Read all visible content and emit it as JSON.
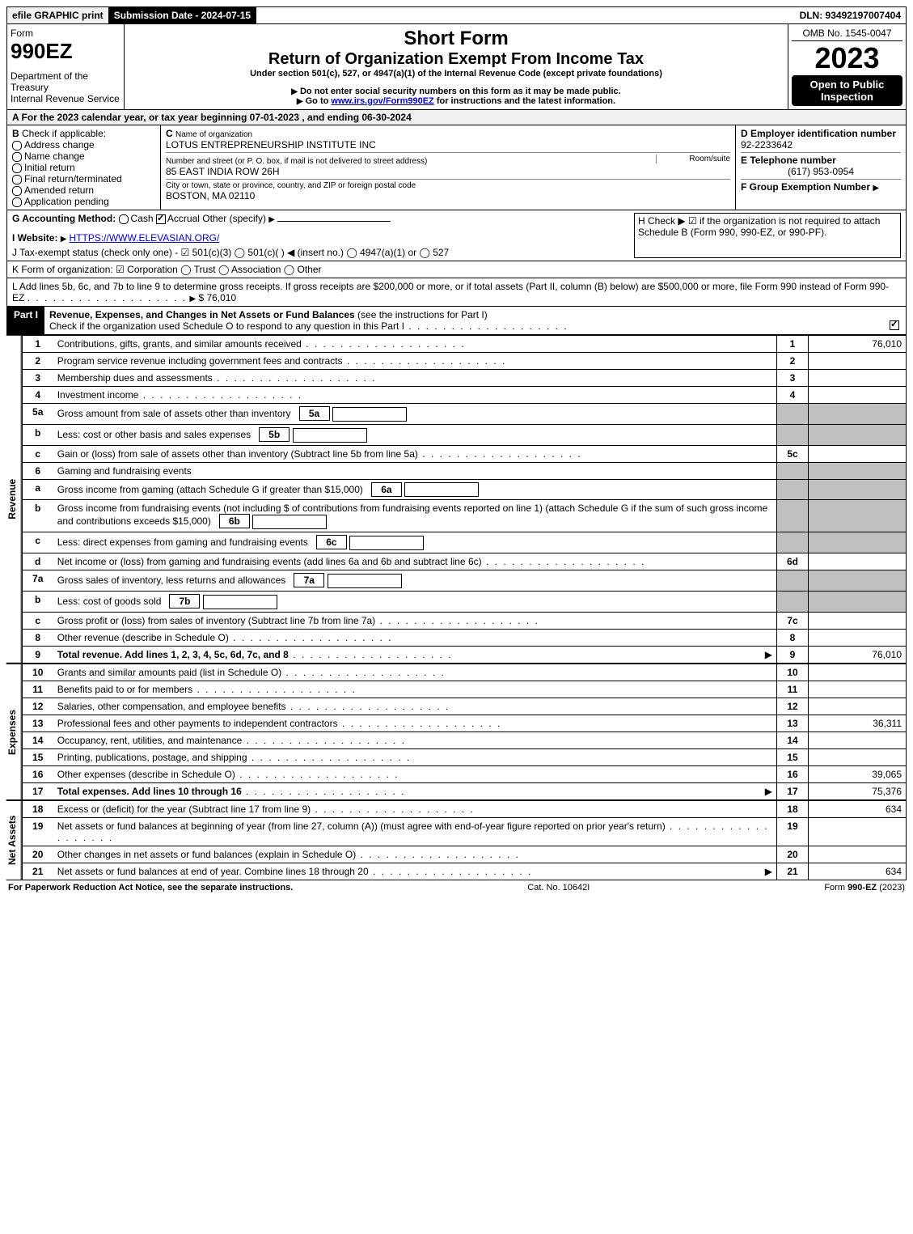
{
  "top": {
    "efile": "efile GRAPHIC print",
    "submission": "Submission Date - 2024-07-15",
    "dln": "DLN: 93492197007404"
  },
  "header": {
    "form_label": "Form",
    "form_no": "990EZ",
    "dept": "Department of the Treasury",
    "irs": "Internal Revenue Service",
    "short": "Short Form",
    "title2": "Return of Organization Exempt From Income Tax",
    "sub1": "Under section 501(c), 527, or 4947(a)(1) of the Internal Revenue Code (except private foundations)",
    "sub2": "Do not enter social security numbers on this form as it may be made public.",
    "sub3_pre": "Go to ",
    "sub3_link": "www.irs.gov/Form990EZ",
    "sub3_post": " for instructions and the latest information.",
    "omb": "OMB No. 1545-0047",
    "year": "2023",
    "open": "Open to Public Inspection"
  },
  "row_a": "A  For the 2023 calendar year, or tax year beginning 07-01-2023 , and ending 06-30-2024",
  "box_b": {
    "head": "B",
    "label": "Check if applicable:",
    "items": [
      "Address change",
      "Name change",
      "Initial return",
      "Final return/terminated",
      "Amended return",
      "Application pending"
    ]
  },
  "box_c": {
    "c_label": "C",
    "name_label": "Name of organization",
    "name": "LOTUS ENTREPRENEURSHIP INSTITUTE INC",
    "street_label": "Number and street (or P. O. box, if mail is not delivered to street address)",
    "room_label": "Room/suite",
    "street": "85 EAST INDIA ROW 26H",
    "city_label": "City or town, state or province, country, and ZIP or foreign postal code",
    "city": "BOSTON, MA  02110"
  },
  "box_d": {
    "d_label": "D Employer identification number",
    "ein": "92-2233642",
    "e_label": "E Telephone number",
    "phone": "(617) 953-0954",
    "f_label": "F Group Exemption Number"
  },
  "row_g": {
    "label": "G Accounting Method:",
    "cash": "Cash",
    "accrual": "Accrual",
    "other": "Other (specify)"
  },
  "row_h": "H   Check ▶  ☑  if the organization is not required to attach Schedule B (Form 990, 990-EZ, or 990-PF).",
  "row_i": {
    "label": "I Website: ",
    "url": "HTTPS://WWW.ELEVASIAN.ORG/"
  },
  "row_j": "J Tax-exempt status (check only one) -  ☑ 501(c)(3)  ◯ 501(c)(  ) ◀ (insert no.)  ◯ 4947(a)(1) or  ◯ 527",
  "row_k": "K Form of organization:   ☑ Corporation   ◯ Trust   ◯ Association   ◯ Other",
  "row_l": {
    "text": "L Add lines 5b, 6c, and 7b to line 9 to determine gross receipts. If gross receipts are $200,000 or more, or if total assets (Part II, column (B) below) are $500,000 or more, file Form 990 instead of Form 990-EZ",
    "amount": "$ 76,010"
  },
  "part1": {
    "label": "Part I",
    "title": "Revenue, Expenses, and Changes in Net Assets or Fund Balances",
    "sub": " (see the instructions for Part I)",
    "check_note": "Check if the organization used Schedule O to respond to any question in this Part I"
  },
  "revenue_lines": [
    {
      "n": "1",
      "d": "Contributions, gifts, grants, and similar amounts received",
      "r": "1",
      "a": "76,010"
    },
    {
      "n": "2",
      "d": "Program service revenue including government fees and contracts",
      "r": "2",
      "a": ""
    },
    {
      "n": "3",
      "d": "Membership dues and assessments",
      "r": "3",
      "a": ""
    },
    {
      "n": "4",
      "d": "Investment income",
      "r": "4",
      "a": ""
    },
    {
      "n": "5a",
      "d": "Gross amount from sale of assets other than inventory",
      "inner": "5a",
      "gray": true
    },
    {
      "n": "b",
      "d": "Less: cost or other basis and sales expenses",
      "inner": "5b",
      "gray": true
    },
    {
      "n": "c",
      "d": "Gain or (loss) from sale of assets other than inventory (Subtract line 5b from line 5a)",
      "r": "5c",
      "a": ""
    },
    {
      "n": "6",
      "d": "Gaming and fundraising events",
      "noR": true,
      "gray": true
    },
    {
      "n": "a",
      "d": "Gross income from gaming (attach Schedule G if greater than $15,000)",
      "inner": "6a",
      "gray": true
    },
    {
      "n": "b",
      "d": "Gross income from fundraising events (not including $                      of contributions from fundraising events reported on line 1) (attach Schedule G if the sum of such gross income and contributions exceeds $15,000)",
      "inner": "6b",
      "gray": true
    },
    {
      "n": "c",
      "d": "Less: direct expenses from gaming and fundraising events",
      "inner": "6c",
      "gray": true
    },
    {
      "n": "d",
      "d": "Net income or (loss) from gaming and fundraising events (add lines 6a and 6b and subtract line 6c)",
      "r": "6d",
      "a": ""
    },
    {
      "n": "7a",
      "d": "Gross sales of inventory, less returns and allowances",
      "inner": "7a",
      "gray": true
    },
    {
      "n": "b",
      "d": "Less: cost of goods sold",
      "inner": "7b",
      "gray": true
    },
    {
      "n": "c",
      "d": "Gross profit or (loss) from sales of inventory (Subtract line 7b from line 7a)",
      "r": "7c",
      "a": ""
    },
    {
      "n": "8",
      "d": "Other revenue (describe in Schedule O)",
      "r": "8",
      "a": ""
    },
    {
      "n": "9",
      "d": "Total revenue. Add lines 1, 2, 3, 4, 5c, 6d, 7c, and 8",
      "r": "9",
      "a": "76,010",
      "bold": true,
      "arrow": true
    }
  ],
  "expense_lines": [
    {
      "n": "10",
      "d": "Grants and similar amounts paid (list in Schedule O)",
      "r": "10",
      "a": ""
    },
    {
      "n": "11",
      "d": "Benefits paid to or for members",
      "r": "11",
      "a": ""
    },
    {
      "n": "12",
      "d": "Salaries, other compensation, and employee benefits",
      "r": "12",
      "a": ""
    },
    {
      "n": "13",
      "d": "Professional fees and other payments to independent contractors",
      "r": "13",
      "a": "36,311"
    },
    {
      "n": "14",
      "d": "Occupancy, rent, utilities, and maintenance",
      "r": "14",
      "a": ""
    },
    {
      "n": "15",
      "d": "Printing, publications, postage, and shipping",
      "r": "15",
      "a": ""
    },
    {
      "n": "16",
      "d": "Other expenses (describe in Schedule O)",
      "r": "16",
      "a": "39,065"
    },
    {
      "n": "17",
      "d": "Total expenses. Add lines 10 through 16",
      "r": "17",
      "a": "75,376",
      "bold": true,
      "arrow": true
    }
  ],
  "netassets_lines": [
    {
      "n": "18",
      "d": "Excess or (deficit) for the year (Subtract line 17 from line 9)",
      "r": "18",
      "a": "634"
    },
    {
      "n": "19",
      "d": "Net assets or fund balances at beginning of year (from line 27, column (A)) (must agree with end-of-year figure reported on prior year's return)",
      "r": "19",
      "a": ""
    },
    {
      "n": "20",
      "d": "Other changes in net assets or fund balances (explain in Schedule O)",
      "r": "20",
      "a": ""
    },
    {
      "n": "21",
      "d": "Net assets or fund balances at end of year. Combine lines 18 through 20",
      "r": "21",
      "a": "634",
      "arrow": true
    }
  ],
  "section_labels": {
    "revenue": "Revenue",
    "expenses": "Expenses",
    "netassets": "Net Assets"
  },
  "footer": {
    "left": "For Paperwork Reduction Act Notice, see the separate instructions.",
    "mid": "Cat. No. 10642I",
    "right": "Form 990-EZ (2023)"
  }
}
